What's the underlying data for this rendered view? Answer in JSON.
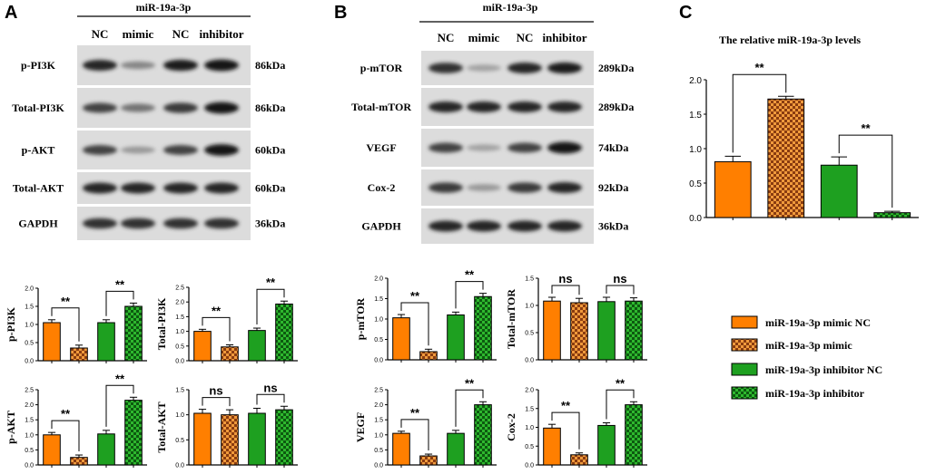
{
  "colors": {
    "mimic_nc": "#ff7f00",
    "mimic": "#c8641e",
    "inhibitor_nc": "#1ea020",
    "inhibitor": "#157a18",
    "blot_bg": "#dcdcdc"
  },
  "panels": {
    "A": {
      "letter": "A",
      "group_label": "miR-19a-3p",
      "lanes": [
        "NC",
        "mimic",
        "NC",
        "inhibitor"
      ],
      "blots": [
        {
          "name": "p-PI3K",
          "kda": "86kDa",
          "intensity": [
            0.85,
            0.35,
            0.9,
            0.95
          ]
        },
        {
          "name": "Total-PI3K",
          "kda": "86kDa",
          "intensity": [
            0.7,
            0.45,
            0.75,
            0.95
          ]
        },
        {
          "name": "p-AKT",
          "kda": "60kDa",
          "intensity": [
            0.7,
            0.25,
            0.7,
            0.95
          ]
        },
        {
          "name": "Total-AKT",
          "kda": "60kDa",
          "intensity": [
            0.85,
            0.85,
            0.85,
            0.85
          ]
        },
        {
          "name": "GAPDH",
          "kda": "36kDa",
          "intensity": [
            0.8,
            0.8,
            0.8,
            0.8
          ]
        }
      ]
    },
    "B": {
      "letter": "B",
      "group_label": "miR-19a-3p",
      "lanes": [
        "NC",
        "mimic",
        "NC",
        "inhibitor"
      ],
      "blots": [
        {
          "name": "p-mTOR",
          "kda": "289kDa",
          "intensity": [
            0.8,
            0.2,
            0.85,
            0.9
          ]
        },
        {
          "name": "Total-mTOR",
          "kda": "289kDa",
          "intensity": [
            0.85,
            0.85,
            0.85,
            0.85
          ]
        },
        {
          "name": "VEGF",
          "kda": "74kDa",
          "intensity": [
            0.7,
            0.2,
            0.7,
            0.95
          ]
        },
        {
          "name": "Cox-2",
          "kda": "92kDa",
          "intensity": [
            0.75,
            0.25,
            0.75,
            0.85
          ]
        },
        {
          "name": "GAPDH",
          "kda": "36kDa",
          "intensity": [
            0.85,
            0.85,
            0.85,
            0.85
          ]
        }
      ]
    },
    "C": {
      "letter": "C",
      "title": "The relative miR-19a-3p levels"
    }
  },
  "legend": [
    {
      "label": "miR-19a-3p mimic NC",
      "style": "mimic_nc"
    },
    {
      "label": "miR-19a-3p mimic",
      "style": "mimic"
    },
    {
      "label": "miR-19a-3p inhibitor NC",
      "style": "inhibitor_nc"
    },
    {
      "label": "miR-19a-3p inhibitor",
      "style": "inhibitor"
    }
  ],
  "chart_data": [
    {
      "id": "c-main",
      "type": "bar",
      "title": "The relative miR-19a-3p levels",
      "ylabel": "",
      "categories": [
        "miR-19a-3p mimic NC",
        "miR-19a-3p mimic",
        "miR-19a-3p inhibitor NC",
        "miR-19a-3p inhibitor"
      ],
      "values": [
        0.81,
        1.72,
        0.76,
        0.07
      ],
      "errors": [
        0.08,
        0.04,
        0.12,
        0.02
      ],
      "ylim": [
        0,
        2.0
      ],
      "yticks": [
        0.0,
        0.5,
        1.0,
        1.5,
        2.0
      ],
      "tick_labels": [
        "0.0",
        "0.5",
        "1.0",
        "1.5",
        "2.0"
      ],
      "significance": [
        {
          "pair": [
            0,
            1
          ],
          "text": "**"
        },
        {
          "pair": [
            2,
            3
          ],
          "text": "**"
        }
      ]
    },
    {
      "id": "a1",
      "type": "bar",
      "ylabel": "p-PI3K",
      "categories": [
        "miR-19a-3p mimic NC",
        "miR-19a-3p mimic",
        "miR-19a-3p inhibitor NC",
        "miR-19a-3p inhibitor"
      ],
      "values": [
        1.05,
        0.35,
        1.05,
        1.5
      ],
      "errors": [
        0.08,
        0.08,
        0.08,
        0.09
      ],
      "ylim": [
        0,
        2.0
      ],
      "yticks": [
        0.0,
        0.5,
        1.0,
        1.5,
        2.0
      ],
      "tick_labels": [
        "0.0",
        "0.5",
        "1.0",
        "1.5",
        "2.0"
      ],
      "significance": [
        {
          "pair": [
            0,
            1
          ],
          "text": "**"
        },
        {
          "pair": [
            2,
            3
          ],
          "text": "**"
        }
      ]
    },
    {
      "id": "a2",
      "type": "bar",
      "ylabel": "Total-PI3K",
      "categories": [
        "miR-19a-3p mimic NC",
        "miR-19a-3p mimic",
        "miR-19a-3p inhibitor NC",
        "miR-19a-3p inhibitor"
      ],
      "values": [
        1.0,
        0.47,
        1.03,
        1.93
      ],
      "errors": [
        0.07,
        0.07,
        0.08,
        0.1
      ],
      "ylim": [
        0,
        2.5
      ],
      "yticks": [
        0.0,
        0.5,
        1.0,
        1.5,
        2.0,
        2.5
      ],
      "tick_labels": [
        "0.0",
        "0.5",
        "1.0",
        "1.5",
        "2.0",
        "2.5"
      ],
      "significance": [
        {
          "pair": [
            0,
            1
          ],
          "text": "**"
        },
        {
          "pair": [
            2,
            3
          ],
          "text": "**"
        }
      ]
    },
    {
      "id": "a3",
      "type": "bar",
      "ylabel": "p-AKT",
      "categories": [
        "miR-19a-3p mimic NC",
        "miR-19a-3p mimic",
        "miR-19a-3p inhibitor NC",
        "miR-19a-3p inhibitor"
      ],
      "values": [
        1.0,
        0.25,
        1.03,
        2.15
      ],
      "errors": [
        0.08,
        0.08,
        0.12,
        0.1
      ],
      "ylim": [
        0,
        2.5
      ],
      "yticks": [
        0.0,
        0.5,
        1.0,
        1.5,
        2.0,
        2.5
      ],
      "tick_labels": [
        "0.0",
        "0.5",
        "1.0",
        "1.5",
        "2.0",
        "2.5"
      ],
      "significance": [
        {
          "pair": [
            0,
            1
          ],
          "text": "**"
        },
        {
          "pair": [
            2,
            3
          ],
          "text": "**"
        }
      ]
    },
    {
      "id": "a4",
      "type": "bar",
      "ylabel": "Total-AKT",
      "categories": [
        "miR-19a-3p mimic NC",
        "miR-19a-3p mimic",
        "miR-19a-3p inhibitor NC",
        "miR-19a-3p inhibitor"
      ],
      "values": [
        1.03,
        1.0,
        1.03,
        1.1
      ],
      "errors": [
        0.08,
        0.1,
        0.1,
        0.07
      ],
      "ylim": [
        0,
        1.5
      ],
      "yticks": [
        0.0,
        0.5,
        1.0,
        1.5
      ],
      "tick_labels": [
        "0.0",
        "0.5",
        "1.0",
        "1.5"
      ],
      "significance": [
        {
          "pair": [
            0,
            1
          ],
          "text": "ns"
        },
        {
          "pair": [
            2,
            3
          ],
          "text": "ns"
        }
      ]
    },
    {
      "id": "b1",
      "type": "bar",
      "ylabel": "p-mTOR",
      "categories": [
        "miR-19a-3p mimic NC",
        "miR-19a-3p mimic",
        "miR-19a-3p inhibitor NC",
        "miR-19a-3p inhibitor"
      ],
      "values": [
        1.03,
        0.2,
        1.1,
        1.55
      ],
      "errors": [
        0.08,
        0.06,
        0.07,
        0.08
      ],
      "ylim": [
        0,
        2.0
      ],
      "yticks": [
        0.0,
        0.5,
        1.0,
        1.5,
        2.0
      ],
      "tick_labels": [
        "0.0",
        "0.5",
        "1.0",
        "1.5",
        "2.0"
      ],
      "significance": [
        {
          "pair": [
            0,
            1
          ],
          "text": "**"
        },
        {
          "pair": [
            2,
            3
          ],
          "text": "**"
        }
      ]
    },
    {
      "id": "b2",
      "type": "bar",
      "ylabel": "Total-mTOR",
      "categories": [
        "miR-19a-3p mimic NC",
        "miR-19a-3p mimic",
        "miR-19a-3p inhibitor NC",
        "miR-19a-3p inhibitor"
      ],
      "values": [
        1.08,
        1.05,
        1.07,
        1.08
      ],
      "errors": [
        0.07,
        0.08,
        0.08,
        0.06
      ],
      "ylim": [
        0,
        1.5
      ],
      "yticks": [
        0.0,
        0.5,
        1.0,
        1.5
      ],
      "tick_labels": [
        "0.0",
        "0.5",
        "1.0",
        "1.5"
      ],
      "significance": [
        {
          "pair": [
            0,
            1
          ],
          "text": "ns"
        },
        {
          "pair": [
            2,
            3
          ],
          "text": "ns"
        }
      ]
    },
    {
      "id": "b3",
      "type": "bar",
      "ylabel": "VEGF",
      "categories": [
        "miR-19a-3p mimic NC",
        "miR-19a-3p mimic",
        "miR-19a-3p inhibitor NC",
        "miR-19a-3p inhibitor"
      ],
      "values": [
        1.05,
        0.3,
        1.05,
        2.0
      ],
      "errors": [
        0.07,
        0.06,
        0.1,
        0.1
      ],
      "ylim": [
        0,
        2.5
      ],
      "yticks": [
        0.0,
        0.5,
        1.0,
        1.5,
        2.0,
        2.5
      ],
      "tick_labels": [
        "0.0",
        "0.5",
        "1.0",
        "1.5",
        "2.0",
        "2.5"
      ],
      "significance": [
        {
          "pair": [
            0,
            1
          ],
          "text": "**"
        },
        {
          "pair": [
            2,
            3
          ],
          "text": "**"
        }
      ]
    },
    {
      "id": "b4",
      "type": "bar",
      "ylabel": "Cox-2",
      "categories": [
        "miR-19a-3p mimic NC",
        "miR-19a-3p mimic",
        "miR-19a-3p inhibitor NC",
        "miR-19a-3p inhibitor"
      ],
      "values": [
        0.98,
        0.27,
        1.05,
        1.6
      ],
      "errors": [
        0.1,
        0.05,
        0.07,
        0.08
      ],
      "ylim": [
        0,
        2.0
      ],
      "yticks": [
        0.0,
        0.5,
        1.0,
        1.5,
        2.0
      ],
      "tick_labels": [
        "0.0",
        "0.5",
        "1.0",
        "1.5",
        "2.0"
      ],
      "significance": [
        {
          "pair": [
            0,
            1
          ],
          "text": "**"
        },
        {
          "pair": [
            2,
            3
          ],
          "text": "**"
        }
      ]
    }
  ]
}
